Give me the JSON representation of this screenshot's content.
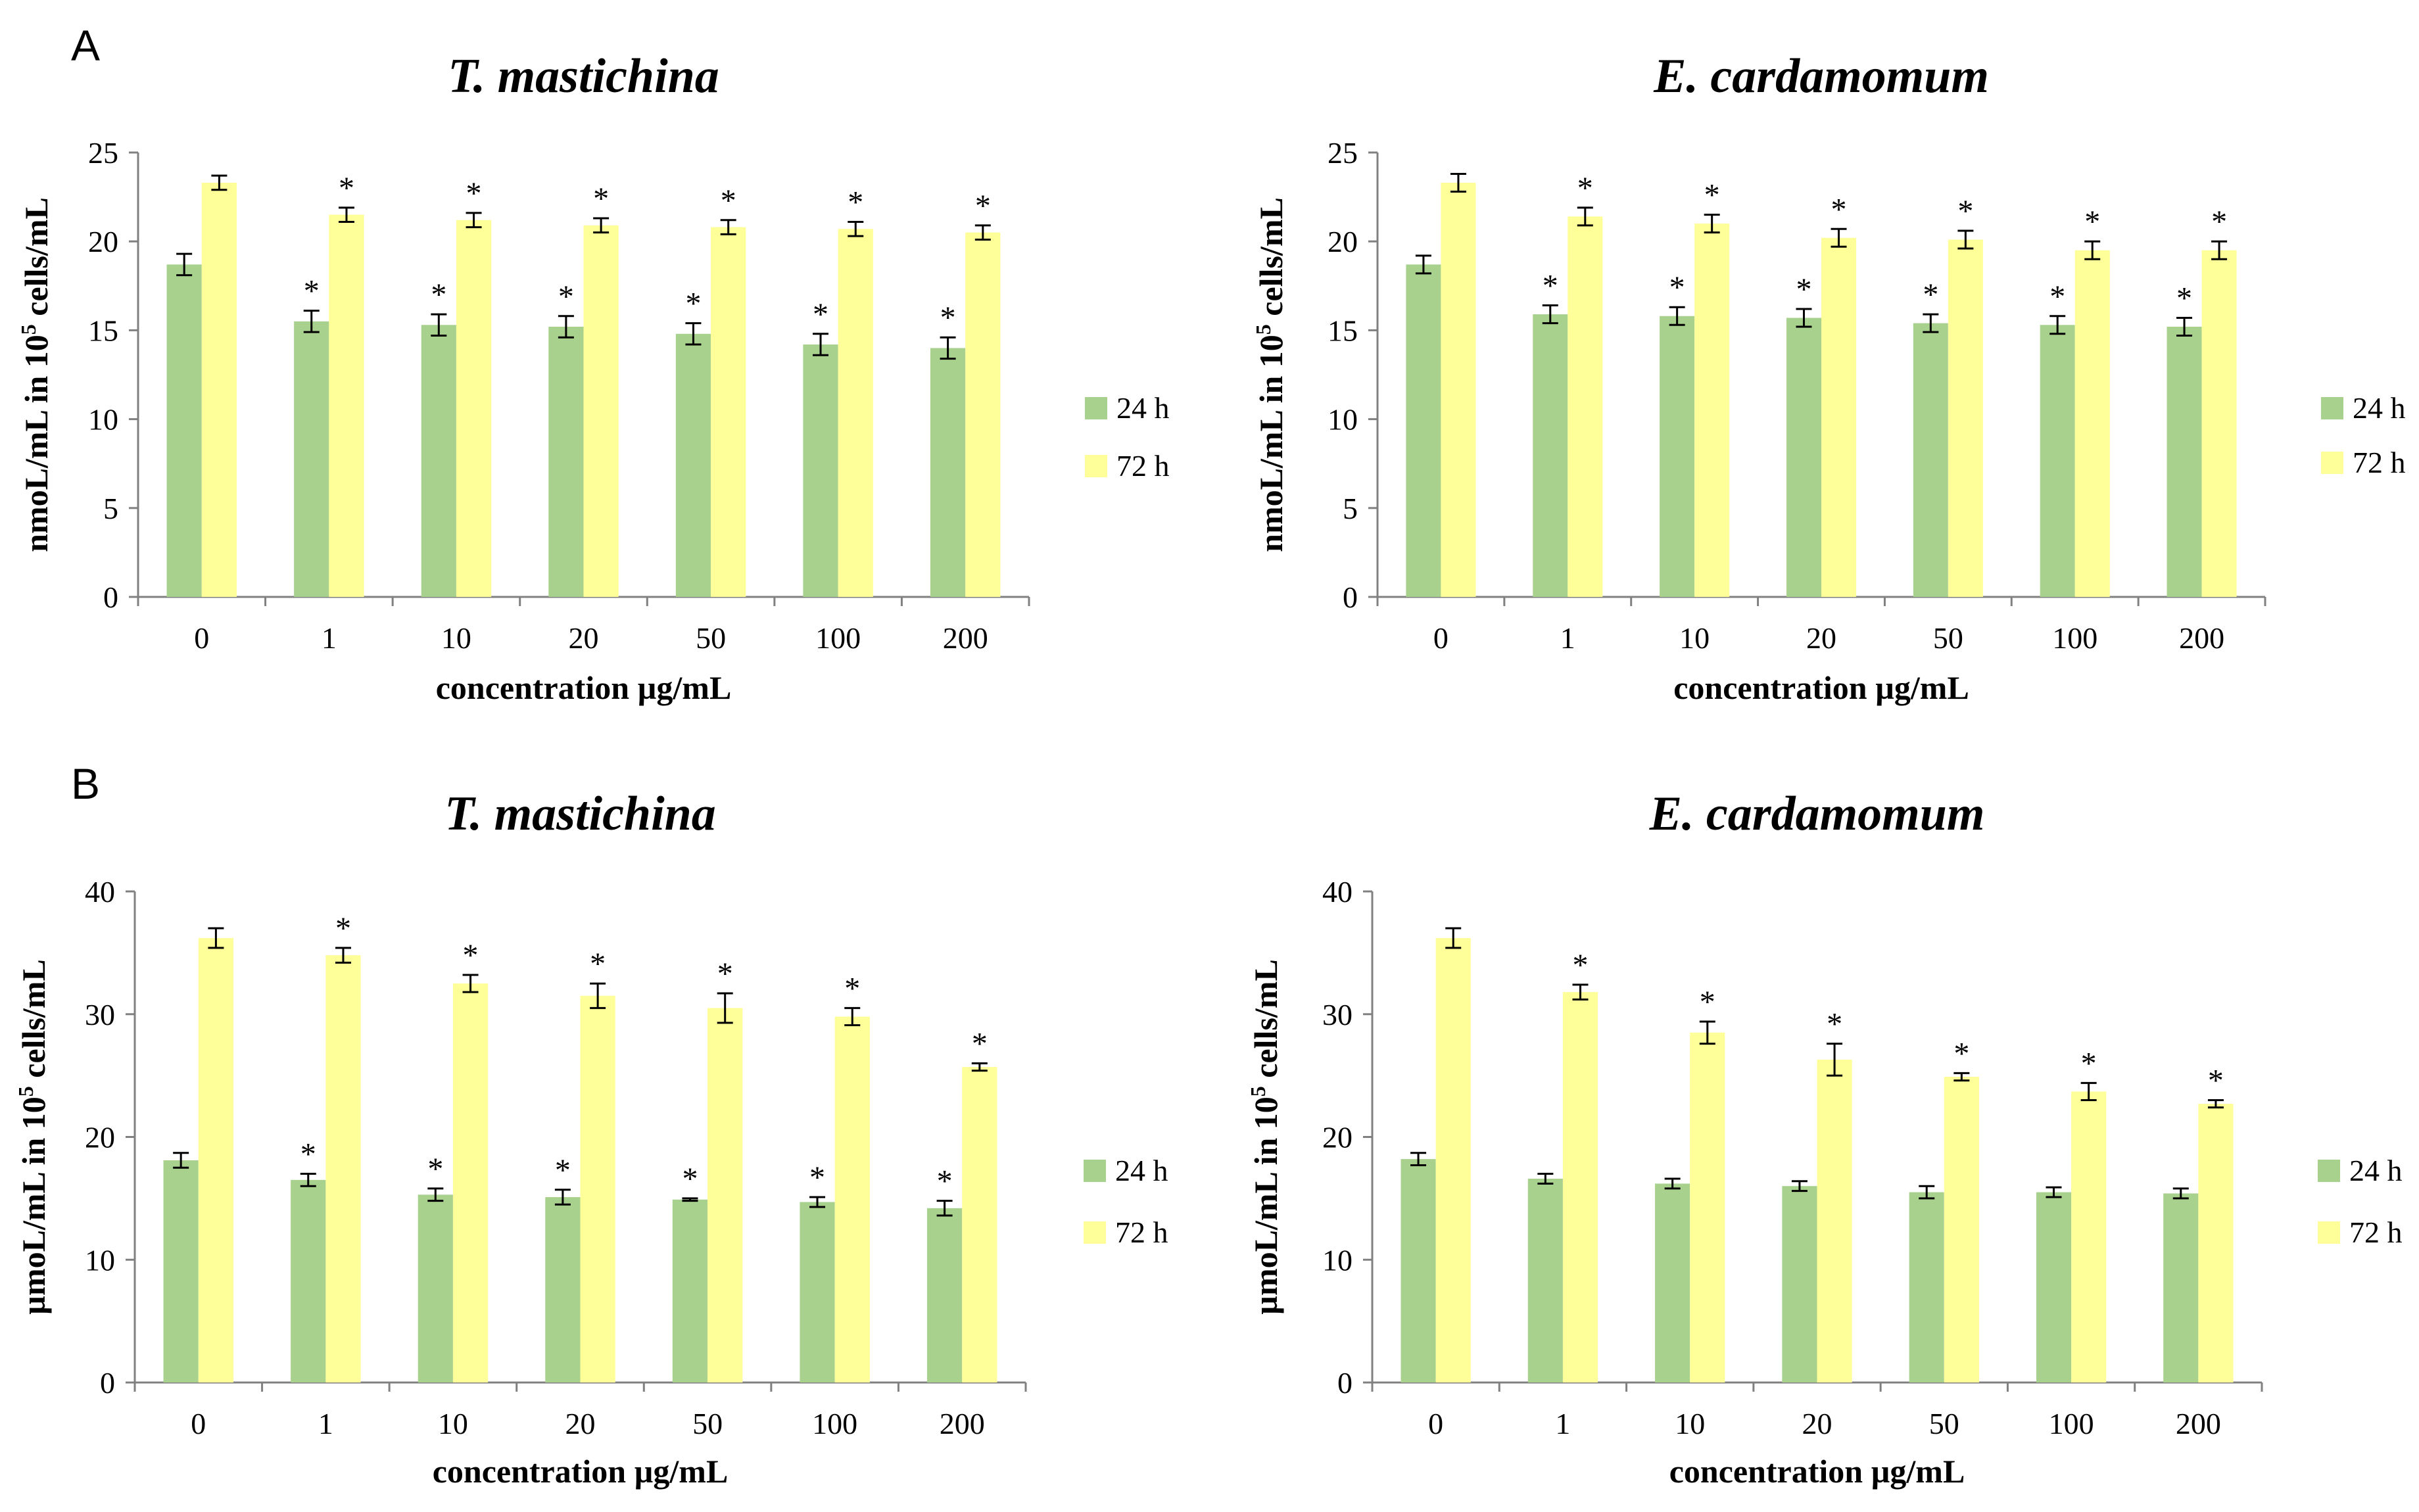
{
  "panel_labels": [
    "A",
    "B"
  ],
  "colors": {
    "series_24h": "#a9d18e",
    "series_72h": "#ffff99",
    "axis": "#808080",
    "text": "#000000"
  },
  "chart_data": [
    {
      "type": "bar",
      "panel": "A",
      "title": "T. mastichina",
      "xlabel": "concentration µg/mL",
      "ylabel_prefix": "nmoL/mL in 10",
      "ylabel_sup": "5",
      "ylabel_suffix": " cells/mL",
      "ylim": [
        0,
        25
      ],
      "yticks": [
        0,
        5,
        10,
        15,
        20,
        25
      ],
      "categories": [
        "0",
        "1",
        "10",
        "20",
        "50",
        "100",
        "200"
      ],
      "legend_position": "right",
      "series": [
        {
          "name": "24 h",
          "values": [
            18.7,
            15.5,
            15.3,
            15.2,
            14.8,
            14.2,
            14.0
          ],
          "errors": [
            0.6,
            0.6,
            0.6,
            0.6,
            0.6,
            0.6,
            0.6
          ],
          "significant": [
            false,
            true,
            true,
            true,
            true,
            true,
            true
          ]
        },
        {
          "name": "72 h",
          "values": [
            23.3,
            21.5,
            21.2,
            20.9,
            20.8,
            20.7,
            20.5
          ],
          "errors": [
            0.4,
            0.4,
            0.4,
            0.4,
            0.4,
            0.4,
            0.4
          ],
          "significant": [
            false,
            true,
            true,
            true,
            true,
            true,
            true
          ]
        }
      ]
    },
    {
      "type": "bar",
      "panel": "A",
      "title": "E. cardamomum",
      "xlabel": "concentration µg/mL",
      "ylabel_prefix": "nmoL/mL in 10",
      "ylabel_sup": "5",
      "ylabel_suffix": " cells/mL",
      "ylim": [
        0,
        25
      ],
      "yticks": [
        0,
        5,
        10,
        15,
        20,
        25
      ],
      "categories": [
        "0",
        "1",
        "10",
        "20",
        "50",
        "100",
        "200"
      ],
      "legend_position": "right",
      "series": [
        {
          "name": "24 h",
          "values": [
            18.7,
            15.9,
            15.8,
            15.7,
            15.4,
            15.3,
            15.2
          ],
          "errors": [
            0.5,
            0.5,
            0.5,
            0.5,
            0.5,
            0.5,
            0.5
          ],
          "significant": [
            false,
            true,
            true,
            true,
            true,
            true,
            true
          ]
        },
        {
          "name": "72 h",
          "values": [
            23.3,
            21.4,
            21.0,
            20.2,
            20.1,
            19.5,
            19.5
          ],
          "errors": [
            0.5,
            0.5,
            0.5,
            0.5,
            0.5,
            0.5,
            0.5
          ],
          "significant": [
            false,
            true,
            true,
            true,
            true,
            true,
            true
          ]
        }
      ]
    },
    {
      "type": "bar",
      "panel": "B",
      "title": "T. mastichina",
      "xlabel": "concentration µg/mL",
      "ylabel_prefix": "µmoL/mL in 10",
      "ylabel_sup": "5",
      "ylabel_suffix": " cells/mL",
      "ylim": [
        0,
        40
      ],
      "yticks": [
        0,
        10,
        20,
        30,
        40
      ],
      "categories": [
        "0",
        "1",
        "10",
        "20",
        "50",
        "100",
        "200"
      ],
      "legend_position": "right",
      "series": [
        {
          "name": "24 h",
          "values": [
            18.1,
            16.5,
            15.3,
            15.1,
            14.9,
            14.7,
            14.2
          ],
          "errors": [
            0.6,
            0.5,
            0.5,
            0.6,
            0.1,
            0.4,
            0.6
          ],
          "significant": [
            false,
            true,
            true,
            true,
            true,
            true,
            true
          ]
        },
        {
          "name": "72 h",
          "values": [
            36.2,
            34.8,
            32.5,
            31.5,
            30.5,
            29.8,
            25.7
          ],
          "errors": [
            0.8,
            0.6,
            0.7,
            1.0,
            1.2,
            0.7,
            0.3
          ],
          "significant": [
            false,
            true,
            true,
            true,
            true,
            true,
            true
          ]
        }
      ]
    },
    {
      "type": "bar",
      "panel": "B",
      "title": "E. cardamomum",
      "xlabel": "concentration µg/mL",
      "ylabel_prefix": "µmoL/mL in 10",
      "ylabel_sup": "5",
      "ylabel_suffix": " cells/mL",
      "ylim": [
        0,
        40
      ],
      "yticks": [
        0,
        10,
        20,
        30,
        40
      ],
      "categories": [
        "0",
        "1",
        "10",
        "20",
        "50",
        "100",
        "200"
      ],
      "legend_position": "right",
      "series": [
        {
          "name": "24 h",
          "values": [
            18.2,
            16.6,
            16.2,
            16.0,
            15.5,
            15.5,
            15.4
          ],
          "errors": [
            0.5,
            0.4,
            0.4,
            0.4,
            0.5,
            0.4,
            0.4
          ],
          "significant": [
            false,
            false,
            false,
            false,
            false,
            false,
            false
          ]
        },
        {
          "name": "72 h",
          "values": [
            36.2,
            31.8,
            28.5,
            26.3,
            24.9,
            23.7,
            22.7
          ],
          "errors": [
            0.8,
            0.6,
            0.9,
            1.3,
            0.3,
            0.7,
            0.3
          ],
          "significant": [
            false,
            true,
            true,
            true,
            true,
            true,
            true
          ]
        }
      ]
    }
  ]
}
